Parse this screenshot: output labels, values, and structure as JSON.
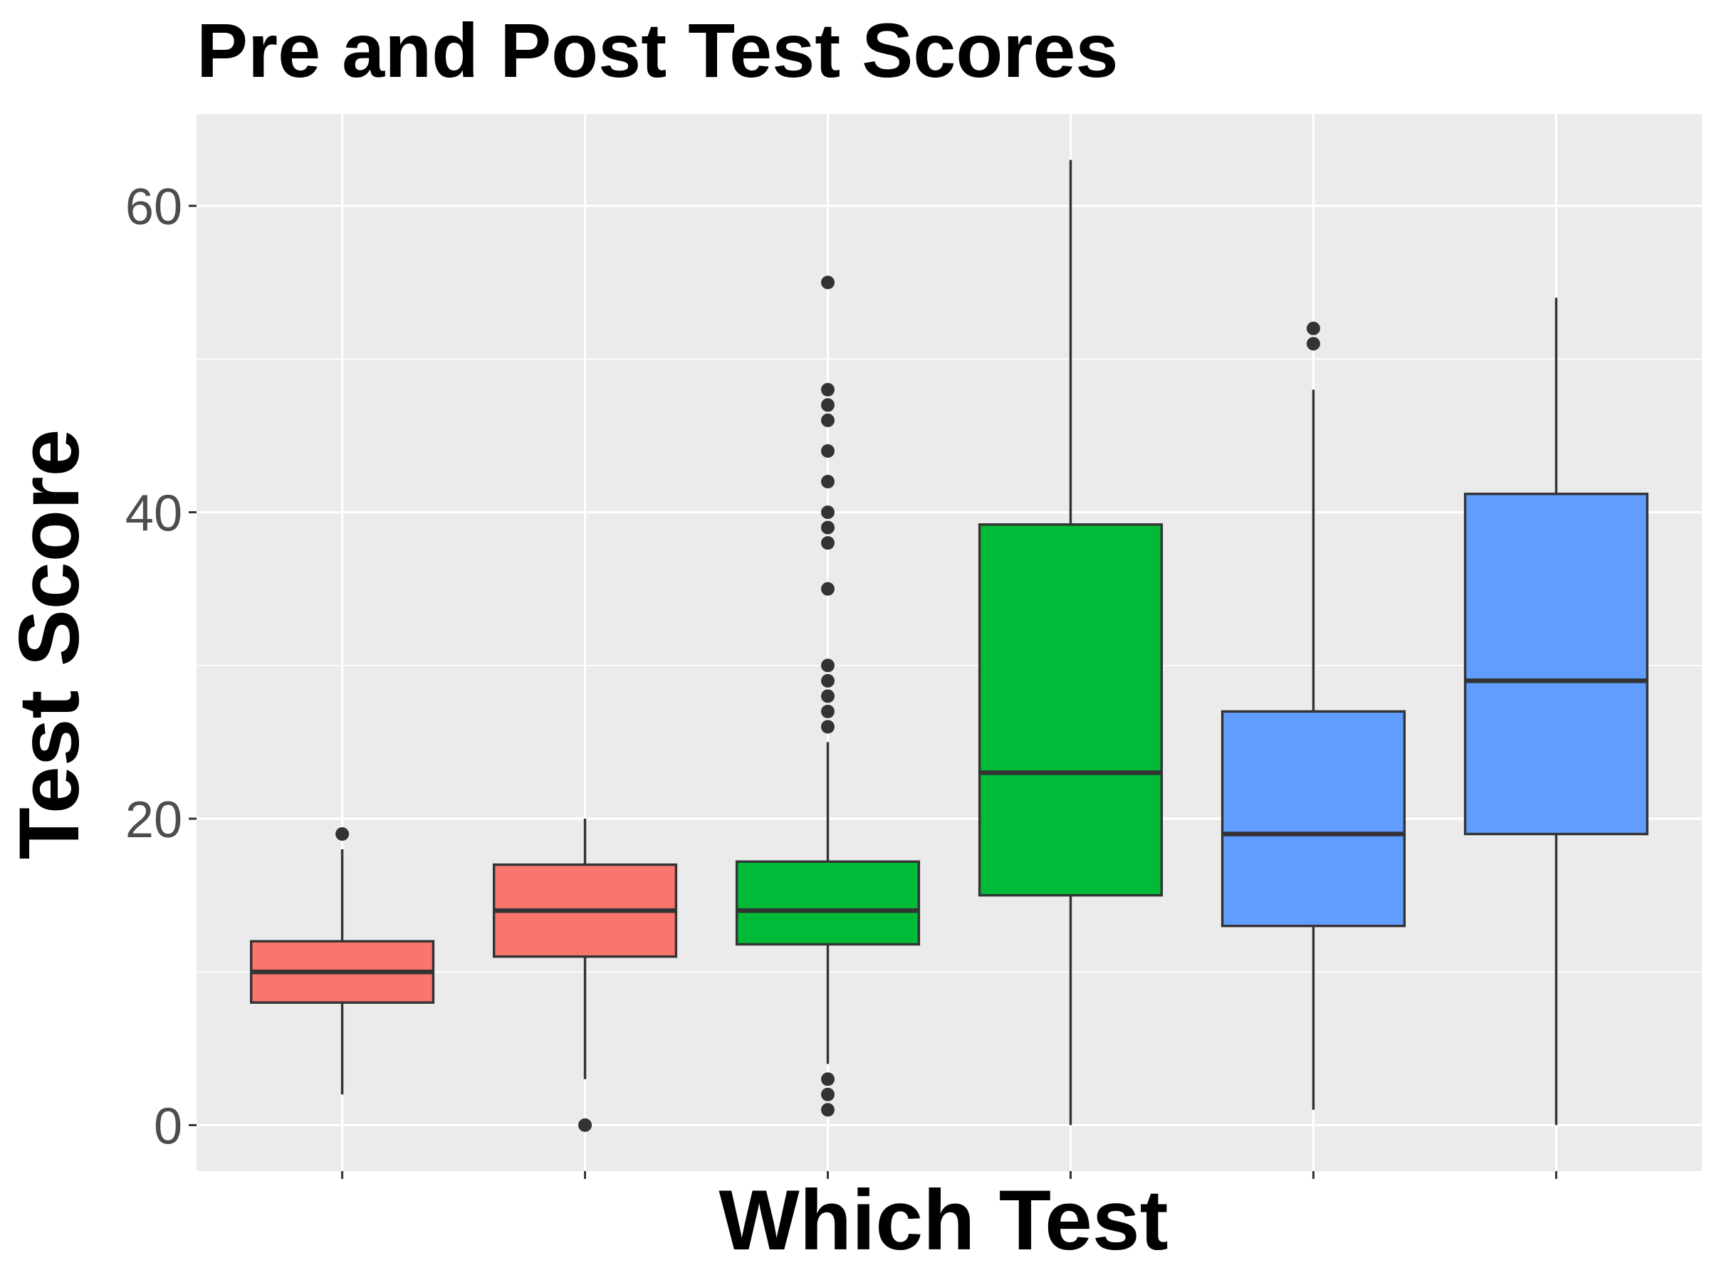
{
  "chart_data": {
    "type": "box",
    "title": "Pre and Post Test Scores",
    "xlabel": "Which Test",
    "ylabel": "Test Score",
    "ylim": [
      -3,
      66
    ],
    "yticks": [
      0,
      20,
      40,
      60
    ],
    "grid": true,
    "legend": "none",
    "groups": [
      {
        "color": "#F8766D",
        "whisker_low": 2,
        "q1": 8,
        "median": 10,
        "q3": 12,
        "whisker_high": 18,
        "outliers": [
          19
        ]
      },
      {
        "color": "#F8766D",
        "whisker_low": 3,
        "q1": 11,
        "median": 14,
        "q3": 17,
        "whisker_high": 20,
        "outliers": [
          0
        ]
      },
      {
        "color": "#00BA38",
        "whisker_low": 4,
        "q1": 11.8,
        "median": 14,
        "q3": 17.2,
        "whisker_high": 25,
        "outliers": [
          1,
          2,
          3,
          26,
          27,
          28,
          29,
          30,
          35,
          38,
          39,
          40,
          42,
          44,
          46,
          47,
          48,
          55
        ]
      },
      {
        "color": "#00BA38",
        "whisker_low": 0,
        "q1": 15,
        "median": 23,
        "q3": 39.2,
        "whisker_high": 63,
        "outliers": []
      },
      {
        "color": "#619CFF",
        "whisker_low": 1,
        "q1": 13,
        "median": 19,
        "q3": 27,
        "whisker_high": 48,
        "outliers": [
          51,
          52
        ]
      },
      {
        "color": "#619CFF",
        "whisker_low": 0,
        "q1": 19,
        "median": 29,
        "q3": 41.2,
        "whisker_high": 54,
        "outliers": []
      }
    ],
    "colors": {
      "panel_bg": "#EBEBEB",
      "grid": "#FFFFFF",
      "box_line": "#333333",
      "tick_text": "#4D4D4D",
      "title_text": "#000000"
    }
  }
}
